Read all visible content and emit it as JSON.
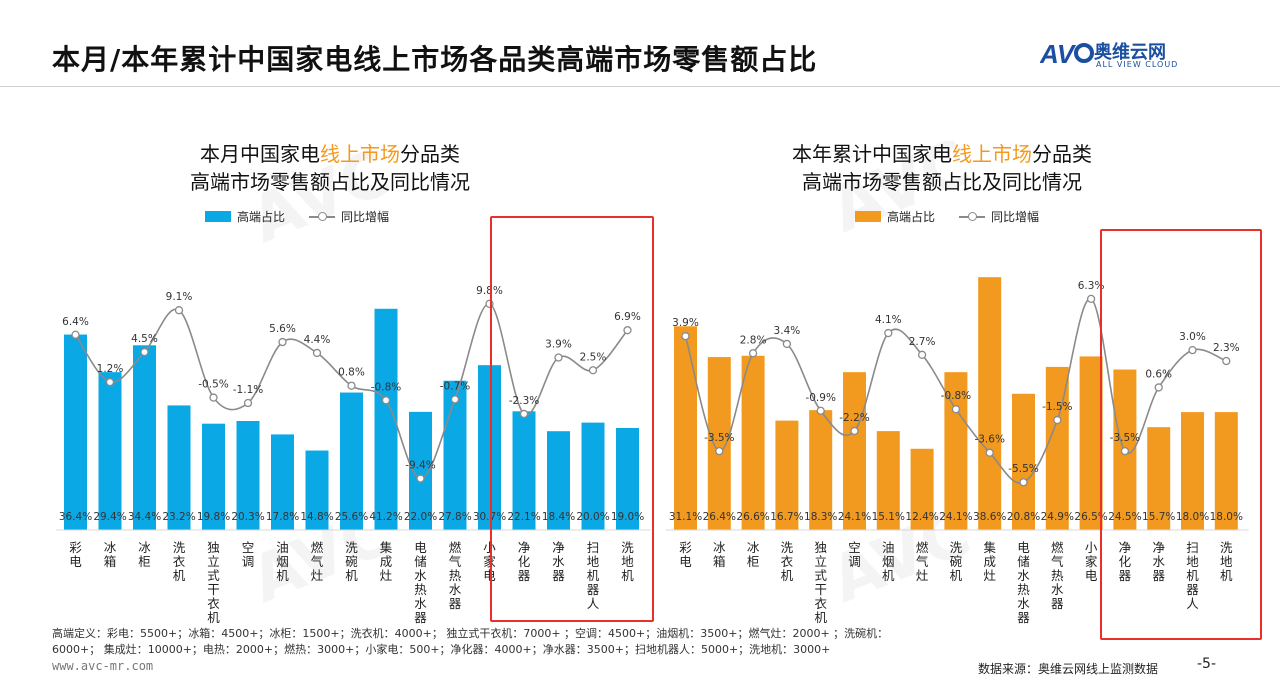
{
  "page": {
    "title": "本月/本年累计中国家电线上市场各品类高端市场零售额占比",
    "logo_text": "奥维云网",
    "logo_sub": "ALL VIEW CLOUD",
    "footnote_line1": "高端定义：彩电：5500+；冰箱：4500+；冰柜：1500+；洗衣机：4000+；   独立式干衣机：7000+ ；空调：4500+；油烟机：3500+；燃气灶：2000+ ；洗碗机：",
    "footnote_line2": "6000+；  集成灶：10000+；电热：2000+；燃热：3000+；小家电：500+；净化器：4000+；净水器：3500+；扫地机器人：5000+；洗地机：3000+",
    "website": "www.avc-mr.com",
    "source": "数据来源：奥维云网线上监测数据",
    "page_number": "-5-",
    "colors": {
      "blue": "#0aa9e6",
      "orange": "#f29a1f",
      "line": "#8a8a8a",
      "box": "#e8302a"
    }
  },
  "chart_data": [
    {
      "type": "bar",
      "title_part1": "本月中国家电",
      "title_highlight": "线上市场",
      "title_part2": "分品类",
      "title_line2": "高端市场零售额占比及同比情况",
      "legend_bar": "高端占比",
      "legend_line": "同比增幅",
      "categories": [
        "彩电",
        "冰箱",
        "冰柜",
        "洗衣机",
        "独立式干衣机",
        "空调",
        "油烟机",
        "燃气灶",
        "洗碗机",
        "集成灶",
        "电储水热水器",
        "燃气热水器",
        "小家电",
        "净化器",
        "净水器",
        "扫地机器人",
        "洗地机"
      ],
      "series": [
        {
          "name": "高端占比",
          "kind": "bar",
          "values": [
            36.4,
            29.4,
            34.4,
            23.2,
            19.8,
            20.3,
            17.8,
            14.8,
            25.6,
            41.2,
            22.0,
            27.8,
            30.7,
            22.1,
            18.4,
            20.0,
            19.0
          ],
          "labels": [
            "36.4%",
            "29.4%",
            "34.4%",
            "23.2%",
            "19.8%",
            "20.3%",
            "17.8%",
            "14.8%",
            "25.6%",
            "41.2%",
            "22.0%",
            "27.8%",
            "30.7%",
            "22.1%",
            "18.4%",
            "20.0%",
            "19.0%"
          ]
        },
        {
          "name": "同比增幅",
          "kind": "line",
          "values": [
            6.4,
            1.2,
            4.5,
            9.1,
            -0.5,
            -1.1,
            5.6,
            4.4,
            0.8,
            -0.8,
            -9.4,
            -0.7,
            9.8,
            -2.3,
            3.9,
            2.5,
            6.9
          ],
          "labels": [
            "6.4%",
            "1.2%",
            "4.5%",
            "9.1%",
            "-0.5%",
            "-1.1%",
            "5.6%",
            "4.4%",
            "0.8%",
            "-0.8%",
            "-9.4%",
            "-0.7%",
            "9.8%",
            "-2.3%",
            "3.9%",
            "2.5%",
            "6.9%"
          ]
        }
      ],
      "highlight_from": 13
    },
    {
      "type": "bar",
      "title_part1": "本年累计中国家电",
      "title_highlight": "线上市场",
      "title_part2": "分品类",
      "title_line2": "高端市场零售额占比及同比情况",
      "legend_bar": "高端占比",
      "legend_line": "同比增幅",
      "categories": [
        "彩电",
        "冰箱",
        "冰柜",
        "洗衣机",
        "独立式干衣机",
        "空调",
        "油烟机",
        "燃气灶",
        "洗碗机",
        "集成灶",
        "电储水热水器",
        "燃气热水器",
        "小家电",
        "净化器",
        "净水器",
        "扫地机器人",
        "洗地机"
      ],
      "series": [
        {
          "name": "高端占比",
          "kind": "bar",
          "values": [
            31.1,
            26.4,
            26.6,
            16.7,
            18.3,
            24.1,
            15.1,
            12.4,
            24.1,
            38.6,
            20.8,
            24.9,
            26.5,
            24.5,
            15.7,
            18.0,
            18.0
          ],
          "labels": [
            "31.1%",
            "26.4%",
            "26.6%",
            "16.7%",
            "18.3%",
            "24.1%",
            "15.1%",
            "12.4%",
            "24.1%",
            "38.6%",
            "20.8%",
            "24.9%",
            "26.5%",
            "24.5%",
            "15.7%",
            "18.0%",
            "18.0%"
          ]
        },
        {
          "name": "同比增幅",
          "kind": "line",
          "values": [
            3.9,
            -3.5,
            2.8,
            3.4,
            -0.9,
            -2.2,
            4.1,
            2.7,
            -0.8,
            -3.6,
            -5.5,
            -1.5,
            6.3,
            -3.5,
            0.6,
            3.0,
            2.3
          ],
          "labels": [
            "3.9%",
            "-3.5%",
            "2.8%",
            "3.4%",
            "-0.9%",
            "-2.2%",
            "4.1%",
            "2.7%",
            "-0.8%",
            "-3.6%",
            "-5.5%",
            "-1.5%",
            "6.3%",
            "-3.5%",
            "0.6%",
            "3.0%",
            "2.3%"
          ]
        }
      ],
      "highlight_from": 13
    }
  ]
}
